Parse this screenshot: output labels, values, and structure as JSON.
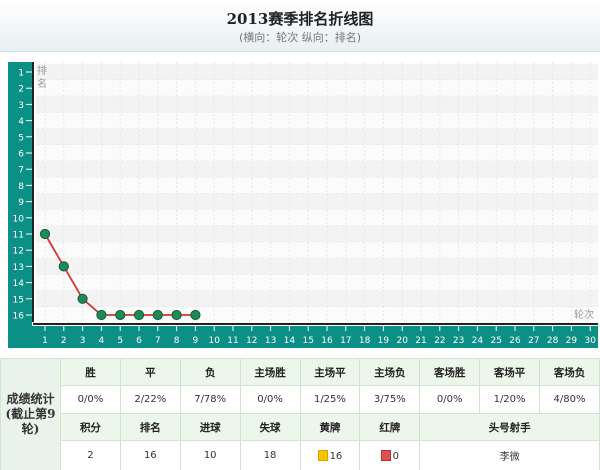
{
  "page": {
    "title": "2013赛季排名折线图",
    "subtitle": "(横向：轮次 纵向：排名)"
  },
  "chart_data": {
    "type": "line",
    "title": "2013赛季排名折线图",
    "subtitle": "(横向：轮次 纵向：排名)",
    "xlabel": "轮次",
    "ylabel": "排名",
    "x_ticks": [
      1,
      2,
      3,
      4,
      5,
      6,
      7,
      8,
      9,
      10,
      11,
      12,
      13,
      14,
      15,
      16,
      17,
      18,
      19,
      20,
      21,
      22,
      23,
      24,
      25,
      26,
      27,
      28,
      29,
      30
    ],
    "y_ticks": [
      1,
      2,
      3,
      4,
      5,
      6,
      7,
      8,
      9,
      10,
      11,
      12,
      13,
      14,
      15,
      16
    ],
    "xlim": [
      1,
      30
    ],
    "ylim": [
      1,
      16
    ],
    "y_inverted": true,
    "grid": true,
    "series": [
      {
        "x": [
          1,
          2,
          3,
          4,
          5,
          6,
          7,
          8,
          9
        ],
        "values": [
          11,
          13,
          15,
          16,
          16,
          16,
          16,
          16,
          16
        ],
        "color": "#d9322b",
        "marker_color": "#1e8a5a"
      }
    ],
    "colors": {
      "axis_band": "#0c8f84",
      "line": "#d9322b",
      "marker": "#1e8a5a"
    }
  },
  "stats": {
    "side_label": "成绩统计(截止第9轮)",
    "row1_headers": [
      "胜",
      "平",
      "负",
      "主场胜",
      "主场平",
      "主场负",
      "客场胜",
      "客场平",
      "客场负"
    ],
    "row1_values": [
      "0/0%",
      "2/22%",
      "7/78%",
      "0/0%",
      "1/25%",
      "3/75%",
      "0/0%",
      "1/20%",
      "4/80%"
    ],
    "row2_headers": [
      "积分",
      "排名",
      "进球",
      "失球",
      "黄牌",
      "红牌",
      "头号射手"
    ],
    "row2_values": [
      "2",
      "16",
      "10",
      "18",
      "16",
      "0",
      "李微"
    ]
  }
}
